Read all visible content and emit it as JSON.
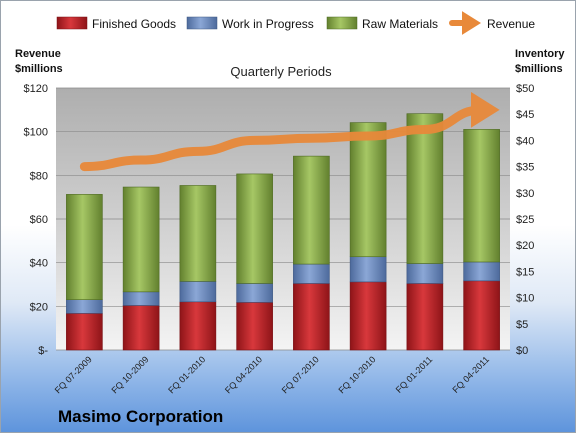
{
  "chart_data": {
    "type": "bar",
    "stacked": true,
    "title": "Quarterly Periods",
    "company": "Masimo Corporation",
    "ylabel_left": [
      "Revenue",
      "$millions"
    ],
    "ylabel_right": [
      "Inventory",
      "$millions"
    ],
    "categories": [
      "FQ 07-2009",
      "FQ 10-2009",
      "FQ 01-2010",
      "FQ 04-2010",
      "FQ 07-2010",
      "FQ 10-2010",
      "FQ 01-2011",
      "FQ 04-2011"
    ],
    "left_axis": {
      "min": 0,
      "max": 120,
      "step": 20,
      "tick_labels": [
        "$-",
        "$20",
        "$40",
        "$60",
        "$80",
        "$100",
        "$120"
      ]
    },
    "right_axis": {
      "min": 0,
      "max": 50,
      "step": 5,
      "tick_labels": [
        "$0",
        "$5",
        "$10",
        "$15",
        "$20",
        "$25",
        "$30",
        "$35",
        "$40",
        "$45",
        "$50"
      ]
    },
    "series": [
      {
        "name": "Finished Goods",
        "axis": "right",
        "color": "#c0282d",
        "values": [
          7.0,
          8.5,
          9.2,
          9.1,
          12.7,
          13.0,
          12.7,
          13.2
        ]
      },
      {
        "name": "Work in Progress",
        "axis": "right",
        "color": "#6f8fc4",
        "values": [
          2.6,
          2.6,
          3.9,
          3.6,
          3.7,
          4.8,
          3.8,
          3.6
        ]
      },
      {
        "name": "Raw Materials",
        "axis": "right",
        "color": "#8fb14e",
        "values": [
          20.1,
          20.0,
          18.3,
          20.9,
          20.6,
          25.6,
          28.6,
          25.3
        ]
      },
      {
        "name": "Revenue",
        "axis": "left",
        "type": "line",
        "color": "#e8893a",
        "values": [
          84,
          87,
          91,
          96,
          97,
          98,
          101,
          110
        ]
      }
    ],
    "grid": true,
    "legend": "top"
  }
}
